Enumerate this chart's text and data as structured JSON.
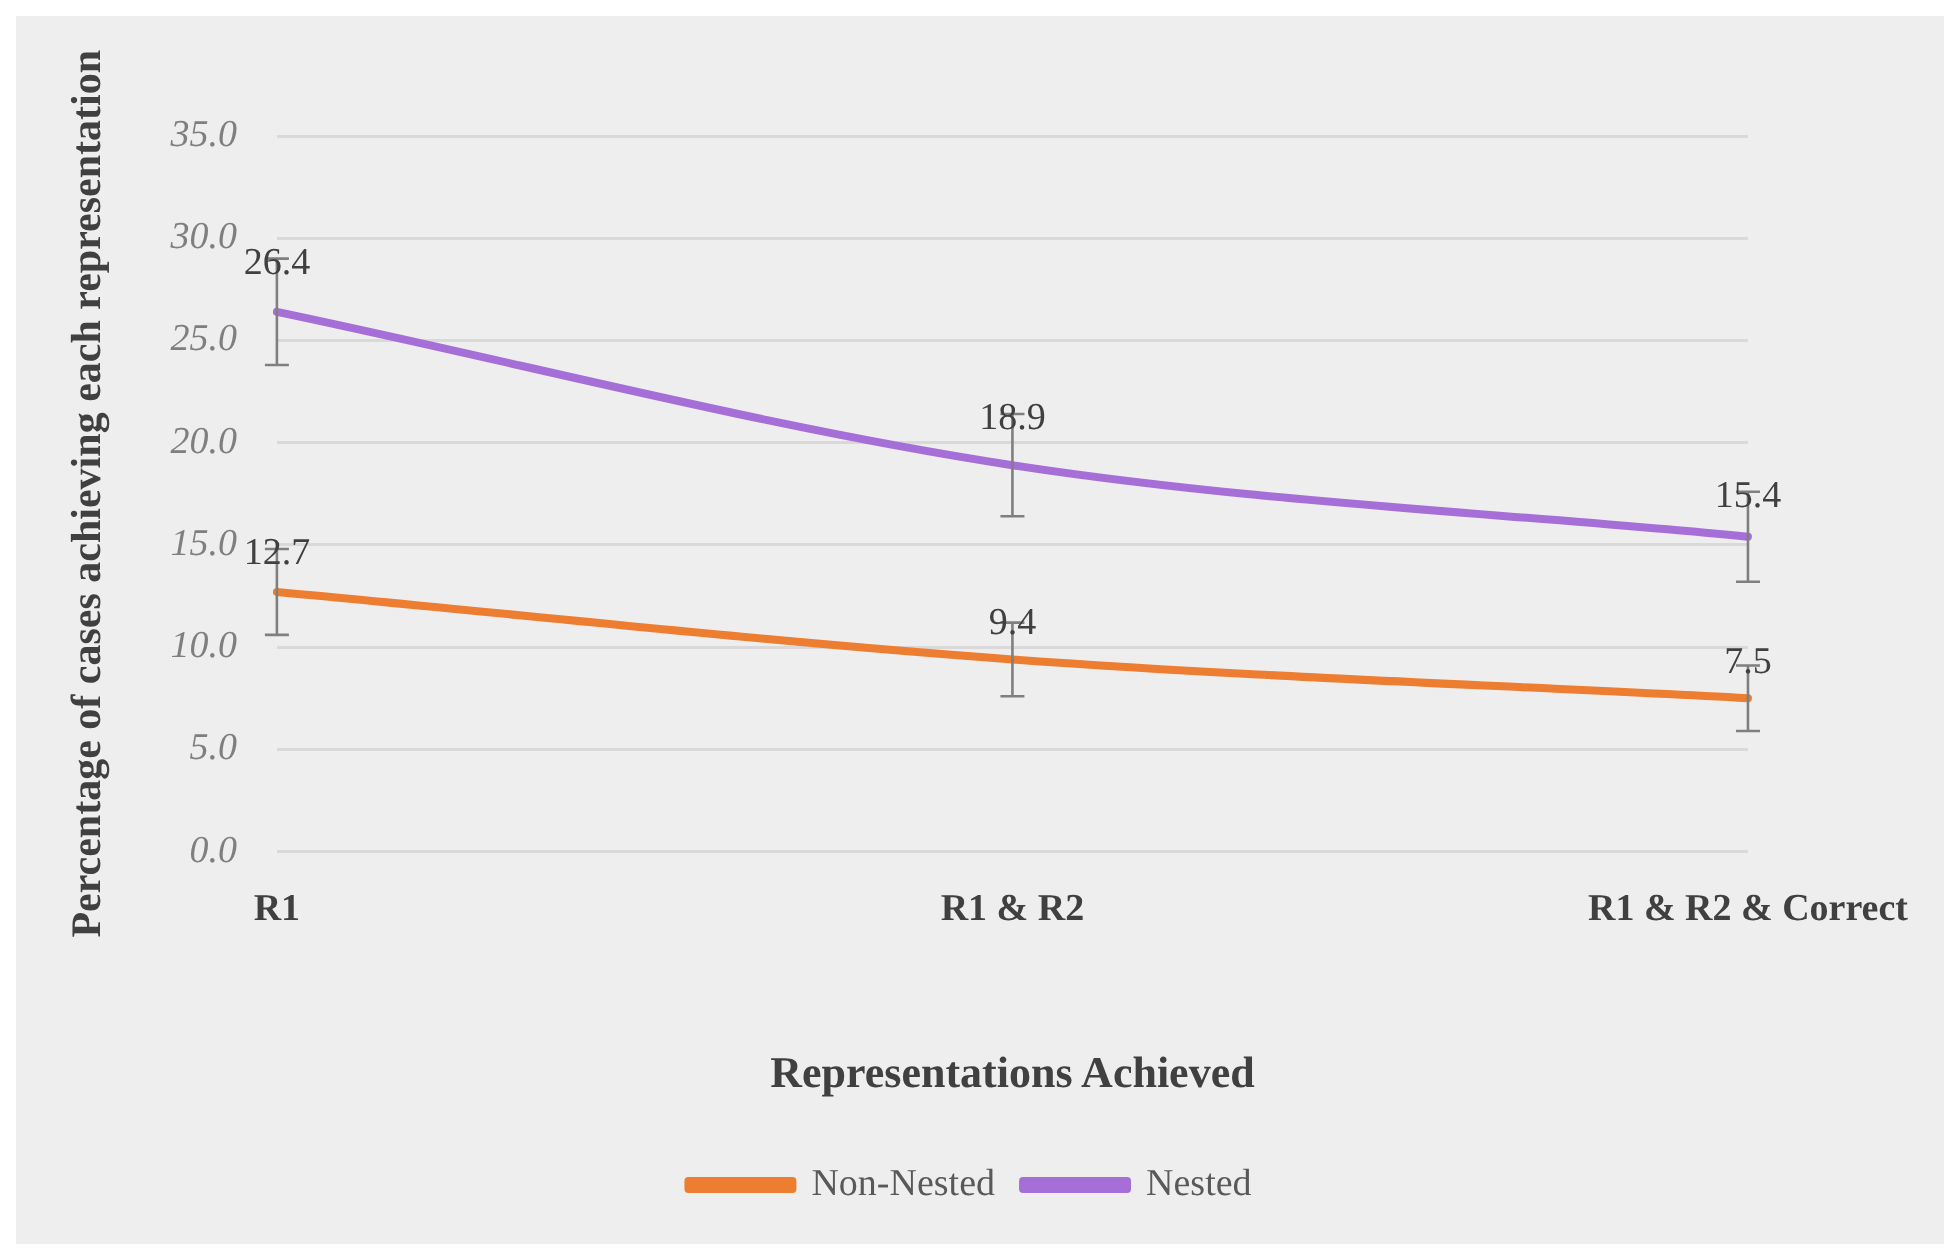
{
  "chart_data": {
    "type": "line",
    "xlabel": "Representations Achieved",
    "ylabel": "Percentage of cases achieving each representation",
    "categories": [
      "R1",
      "R1 & R2",
      "R1 & R2 & Correct"
    ],
    "series": [
      {
        "name": "Non-Nested",
        "color": "#ed7d31",
        "values": [
          12.7,
          9.4,
          7.5
        ],
        "errors": [
          2.1,
          1.8,
          1.6
        ]
      },
      {
        "name": "Nested",
        "color": "#a66fd8",
        "values": [
          26.4,
          18.9,
          15.4
        ],
        "errors": [
          2.6,
          2.5,
          2.2
        ]
      }
    ],
    "ylim": [
      0,
      35
    ],
    "yticks": [
      {
        "value": 0,
        "label": "0.0"
      },
      {
        "value": 5,
        "label": "5.0"
      },
      {
        "value": 10,
        "label": "10.0"
      },
      {
        "value": 15,
        "label": "15.0"
      },
      {
        "value": 20,
        "label": "20.0"
      },
      {
        "value": 25,
        "label": "25.0"
      },
      {
        "value": 30,
        "label": "30.0"
      },
      {
        "value": 35,
        "label": "35.0"
      }
    ],
    "grid": "y",
    "legend": "bottom",
    "marker": "none",
    "line_style": "solid",
    "data_labels": true
  }
}
